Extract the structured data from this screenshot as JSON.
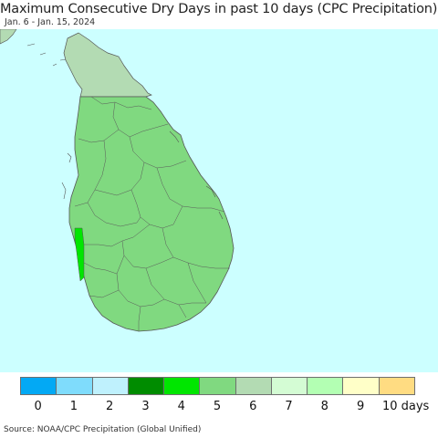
{
  "title": "Maximum Consecutive Dry Days in past 10 days (CPC Precipitation)",
  "subtitle": "Jan. 6 - Jan. 15, 2024",
  "source": "Source: NOAA/CPC Precipitation (Global Unified)",
  "colors": {
    "ocean": "#ccffff",
    "land_5": "#80d980",
    "land_6": "#b3dbb3",
    "land_4": "#00e600",
    "border": "#555555"
  },
  "legend": {
    "items": [
      {
        "label": "0",
        "color": "#03a9f4"
      },
      {
        "label": "1",
        "color": "#7fdcfc"
      },
      {
        "label": "2",
        "color": "#bff1fd"
      },
      {
        "label": "3",
        "color": "#008c00"
      },
      {
        "label": "4",
        "color": "#00e600"
      },
      {
        "label": "5",
        "color": "#80d980"
      },
      {
        "label": "6",
        "color": "#b3dbb3"
      },
      {
        "label": "7",
        "color": "#d4fcd4"
      },
      {
        "label": "8",
        "color": "#b3ffb3"
      },
      {
        "label": "9",
        "color": "#ffffc8"
      },
      {
        "label": "10 days",
        "color": "#ffdc82"
      }
    ]
  }
}
